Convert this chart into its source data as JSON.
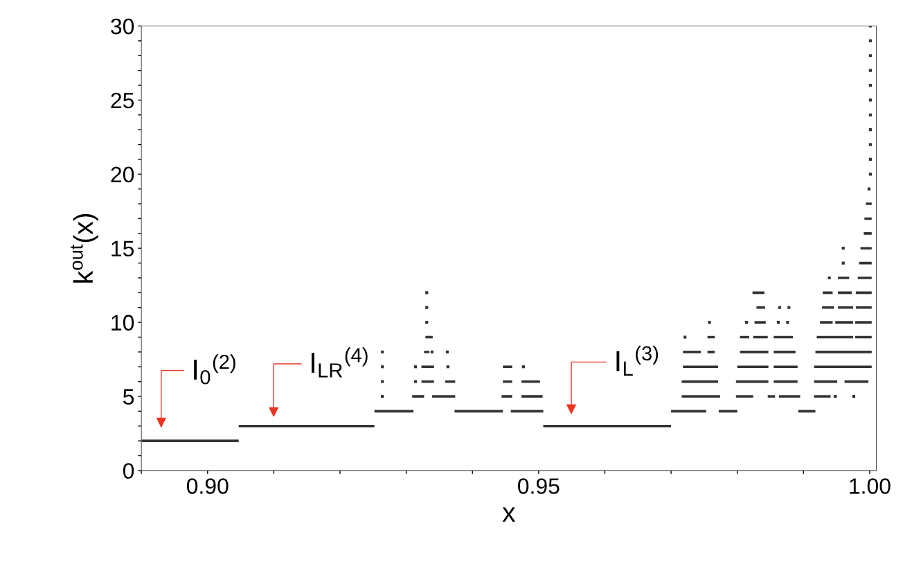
{
  "chart_data": {
    "type": "line",
    "xlabel": "x",
    "ylabel": "k$^{out}$(x)",
    "xlim": [
      0.89,
      1.001
    ],
    "ylim": [
      0,
      30
    ],
    "xticks": [
      {
        "value": 0.89,
        "label": null
      },
      {
        "value": 0.9,
        "label": "0.90"
      },
      {
        "value": 0.91,
        "label": null
      },
      {
        "value": 0.92,
        "label": null
      },
      {
        "value": 0.93,
        "label": null
      },
      {
        "value": 0.94,
        "label": null
      },
      {
        "value": 0.95,
        "label": "0.95"
      },
      {
        "value": 0.96,
        "label": null
      },
      {
        "value": 0.97,
        "label": null
      },
      {
        "value": 0.98,
        "label": null
      },
      {
        "value": 0.99,
        "label": null
      },
      {
        "value": 1.0,
        "label": "1.00"
      }
    ],
    "yticks": [
      0,
      {
        "value": 1,
        "label": null
      },
      {
        "value": 2,
        "label": null
      },
      {
        "value": 3,
        "label": null
      },
      {
        "value": 4,
        "label": null
      },
      5,
      {
        "value": 6,
        "label": null
      },
      {
        "value": 7,
        "label": null
      },
      {
        "value": 8,
        "label": null
      },
      {
        "value": 9,
        "label": null
      },
      10,
      {
        "value": 11,
        "label": null
      },
      {
        "value": 12,
        "label": null
      },
      {
        "value": 13,
        "label": null
      },
      {
        "value": 14,
        "label": null
      },
      15,
      {
        "value": 16,
        "label": null
      },
      {
        "value": 17,
        "label": null
      },
      {
        "value": 18,
        "label": null
      },
      {
        "value": 19,
        "label": null
      },
      20,
      {
        "value": 21,
        "label": null
      },
      {
        "value": 22,
        "label": null
      },
      {
        "value": 23,
        "label": null
      },
      {
        "value": 24,
        "label": null
      },
      25,
      {
        "value": 26,
        "label": null
      },
      {
        "value": 27,
        "label": null
      },
      {
        "value": 28,
        "label": null
      },
      {
        "value": 29,
        "label": null
      },
      30
    ],
    "grid": false,
    "line_style": "solid",
    "series": [
      {
        "color": "#333333",
        "x": [
          0.89,
          0.9047
        ],
        "values": [
          2,
          2
        ]
      },
      {
        "color": "#333333",
        "x": [
          0.9047,
          0.9252
        ],
        "values": [
          3,
          3
        ]
      },
      {
        "color": "#333333",
        "x": [
          0.9507,
          0.97
        ],
        "values": [
          3,
          3
        ]
      },
      {
        "color": "#333333",
        "x": [
          0.9252,
          0.9311
        ],
        "values": [
          4,
          4
        ]
      },
      {
        "color": "#333333",
        "x": [
          0.9373,
          0.9446
        ],
        "values": [
          4,
          4
        ]
      },
      {
        "color": "#333333",
        "x": [
          0.9458,
          0.9507
        ],
        "values": [
          4,
          4
        ]
      },
      {
        "color": "#333333",
        "x": [
          0.97,
          0.9753
        ],
        "values": [
          4,
          4
        ]
      },
      {
        "color": "#333333",
        "x": [
          0.9772,
          0.98
        ],
        "values": [
          4,
          4
        ]
      },
      {
        "color": "#333333",
        "x": [
          0.9892,
          0.9918
        ],
        "values": [
          4,
          4
        ]
      },
      {
        "color": "#333333",
        "x": [
          0.9309,
          0.9327
        ],
        "values": [
          5,
          5
        ]
      },
      {
        "color": "#333333",
        "x": [
          0.9339,
          0.9374
        ],
        "values": [
          5,
          5
        ]
      },
      {
        "color": "#333333",
        "x": [
          0.9444,
          0.946
        ],
        "values": [
          5,
          5
        ]
      },
      {
        "color": "#333333",
        "x": [
          0.9474,
          0.9506
        ],
        "values": [
          5,
          5
        ]
      },
      {
        "color": "#333333",
        "x": [
          0.9716,
          0.9774
        ],
        "values": [
          5,
          5
        ]
      },
      {
        "color": "#333333",
        "x": [
          0.9798,
          0.9824
        ],
        "values": [
          5,
          5
        ]
      },
      {
        "color": "#333333",
        "x": [
          0.9846,
          0.9857
        ],
        "values": [
          5,
          5
        ]
      },
      {
        "color": "#333333",
        "x": [
          0.9863,
          0.9895
        ],
        "values": [
          5,
          5
        ]
      },
      {
        "color": "#333333",
        "x": [
          0.9916,
          0.9941
        ],
        "values": [
          5,
          5
        ]
      },
      {
        "color": "#333333",
        "x": [
          0.9323,
          0.9342
        ],
        "values": [
          6,
          6
        ]
      },
      {
        "color": "#333333",
        "x": [
          0.9359,
          0.9374
        ],
        "values": [
          6,
          6
        ]
      },
      {
        "color": "#333333",
        "x": [
          0.9446,
          0.946
        ],
        "values": [
          6,
          6
        ]
      },
      {
        "color": "#333333",
        "x": [
          0.9474,
          0.9502
        ],
        "values": [
          6,
          6
        ]
      },
      {
        "color": "#333333",
        "x": [
          0.9716,
          0.9771
        ],
        "values": [
          6,
          6
        ]
      },
      {
        "color": "#333333",
        "x": [
          0.9798,
          0.9847
        ],
        "values": [
          6,
          6
        ]
      },
      {
        "color": "#333333",
        "x": [
          0.9855,
          0.9891
        ],
        "values": [
          6,
          6
        ]
      },
      {
        "color": "#333333",
        "x": [
          0.9916,
          0.9951
        ],
        "values": [
          6,
          6
        ]
      },
      {
        "color": "#333333",
        "x": [
          0.9962,
          0.9998
        ],
        "values": [
          6,
          6
        ]
      },
      {
        "color": "#333333",
        "x": [
          0.9323,
          0.9342
        ],
        "values": [
          7,
          7
        ]
      },
      {
        "color": "#333333",
        "x": [
          0.9446,
          0.946
        ],
        "values": [
          7,
          7
        ]
      },
      {
        "color": "#333333",
        "x": [
          0.9718,
          0.9771
        ],
        "values": [
          7,
          7
        ]
      },
      {
        "color": "#333333",
        "x": [
          0.98,
          0.9847
        ],
        "values": [
          7,
          7
        ]
      },
      {
        "color": "#333333",
        "x": [
          0.9855,
          0.9891
        ],
        "values": [
          7,
          7
        ]
      },
      {
        "color": "#333333",
        "x": [
          0.9916,
          1.0003
        ],
        "values": [
          7,
          7
        ]
      },
      {
        "color": "#333333",
        "x": [
          0.9327,
          0.9335
        ],
        "values": [
          8,
          8
        ]
      },
      {
        "color": "#333333",
        "x": [
          0.9718,
          0.9745
        ],
        "values": [
          8,
          8
        ]
      },
      {
        "color": "#333333",
        "x": [
          0.9755,
          0.9766
        ],
        "values": [
          8,
          8
        ]
      },
      {
        "color": "#333333",
        "x": [
          0.9804,
          0.9847
        ],
        "values": [
          8,
          8
        ]
      },
      {
        "color": "#333333",
        "x": [
          0.9855,
          0.9888
        ],
        "values": [
          8,
          8
        ]
      },
      {
        "color": "#333333",
        "x": [
          0.9918,
          1.0003
        ],
        "values": [
          8,
          8
        ]
      },
      {
        "color": "#333333",
        "x": [
          0.9329,
          0.934
        ],
        "values": [
          9,
          9
        ]
      },
      {
        "color": "#333333",
        "x": [
          0.9755,
          0.9766
        ],
        "values": [
          9,
          9
        ]
      },
      {
        "color": "#333333",
        "x": [
          0.9804,
          0.9818
        ],
        "values": [
          9,
          9
        ]
      },
      {
        "color": "#333333",
        "x": [
          0.9824,
          0.9846
        ],
        "values": [
          9,
          9
        ]
      },
      {
        "color": "#333333",
        "x": [
          0.9855,
          0.9884
        ],
        "values": [
          9,
          9
        ]
      },
      {
        "color": "#333333",
        "x": [
          0.992,
          0.9975
        ],
        "values": [
          9,
          9
        ]
      },
      {
        "color": "#333333",
        "x": [
          0.9978,
          1.0003
        ],
        "values": [
          9,
          9
        ]
      },
      {
        "color": "#333333",
        "x": [
          0.9826,
          0.9843
        ],
        "values": [
          10,
          10
        ]
      },
      {
        "color": "#333333",
        "x": [
          0.9925,
          0.9944
        ],
        "values": [
          10,
          10
        ]
      },
      {
        "color": "#333333",
        "x": [
          0.9948,
          0.9975
        ],
        "values": [
          10,
          10
        ]
      },
      {
        "color": "#333333",
        "x": [
          0.9978,
          1.0003
        ],
        "values": [
          10,
          10
        ]
      },
      {
        "color": "#333333",
        "x": [
          0.9829,
          0.9842
        ],
        "values": [
          11,
          11
        ]
      },
      {
        "color": "#333333",
        "x": [
          0.9928,
          0.9946
        ],
        "values": [
          11,
          11
        ]
      },
      {
        "color": "#333333",
        "x": [
          0.9952,
          0.9975
        ],
        "values": [
          11,
          11
        ]
      },
      {
        "color": "#333333",
        "x": [
          0.9979,
          1.0003
        ],
        "values": [
          11,
          11
        ]
      },
      {
        "color": "#333333",
        "x": [
          0.9823,
          0.9841
        ],
        "values": [
          12,
          12
        ]
      },
      {
        "color": "#333333",
        "x": [
          0.9929,
          0.9944
        ],
        "values": [
          12,
          12
        ]
      },
      {
        "color": "#333333",
        "x": [
          0.9952,
          0.9973
        ],
        "values": [
          12,
          12
        ]
      },
      {
        "color": "#333333",
        "x": [
          0.9979,
          1.0003
        ],
        "values": [
          12,
          12
        ]
      },
      {
        "color": "#333333",
        "x": [
          0.9952,
          0.9969
        ],
        "values": [
          13,
          13
        ]
      },
      {
        "color": "#333333",
        "x": [
          0.9982,
          1.0003
        ],
        "values": [
          13,
          13
        ]
      },
      {
        "color": "#333333",
        "x": [
          0.9984,
          1.0003
        ],
        "values": [
          14,
          14
        ]
      },
      {
        "color": "#333333",
        "x": [
          0.9986,
          1.0003
        ],
        "values": [
          15,
          15
        ]
      },
      {
        "color": "#333333",
        "x": [
          0.9991,
          1.0003
        ],
        "values": [
          16,
          16
        ]
      },
      {
        "color": "#333333",
        "x": [
          0.9992,
          1.0003
        ],
        "values": [
          17,
          17
        ]
      },
      {
        "color": "#333333",
        "x": [
          0.9994,
          1.0003
        ],
        "values": [
          18,
          18
        ]
      },
      {
        "type": "scatter",
        "color": "#333333",
        "marker": "square",
        "x": [
          0.9264,
          0.9976,
          0.9264,
          0.9264,
          0.9314,
          0.9264,
          0.9339,
          0.9362,
          0.9721,
          0.9331,
          0.9758,
          0.9814,
          0.9331,
          0.9878,
          0.9331,
          0.996,
          0.996,
          1.0001,
          1.0001,
          1.0001,
          1.0001,
          1.0001,
          1.0001,
          1.0001,
          1.0001,
          1.0001,
          1.0001,
          1.0001,
          0.9948,
          0.9314,
          0.9363,
          0.9477,
          0.9862,
          0.9876,
          0.9864,
          0.9939,
          0.9999
        ],
        "values": [
          5,
          5,
          6,
          7,
          7,
          8,
          8,
          8,
          9,
          10,
          10,
          10,
          11,
          11,
          12,
          14,
          15,
          20,
          21,
          22,
          23,
          24,
          25,
          26,
          27,
          28,
          29,
          30,
          5,
          6,
          7,
          7,
          10,
          10,
          11,
          13,
          19
        ]
      }
    ],
    "annotations": [
      "I$_{0}$$^{(2)}$",
      "I$_{LR}$$^{(4)}$",
      "I$_{L}$$^{(3)}$"
    ]
  }
}
